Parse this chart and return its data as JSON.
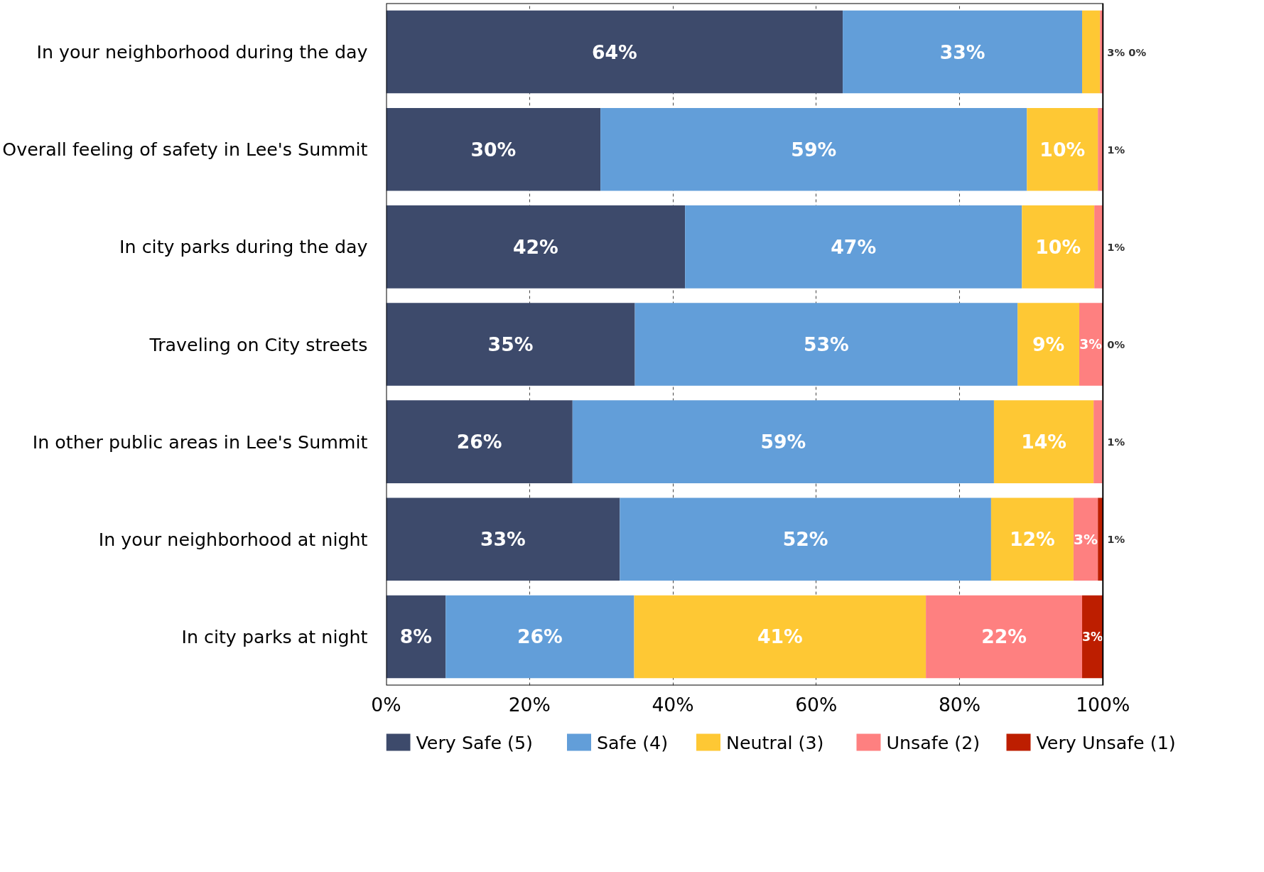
{
  "chart_data": {
    "type": "bar",
    "orientation": "horizontal",
    "stacked": true,
    "categories": [
      "In your neighborhood during the day",
      "Overall feeling of safety in Lee's Summit",
      "In city parks during the day",
      "Traveling on City streets",
      "In other public areas in Lee's Summit",
      "In your neighborhood at night",
      "In city parks at night"
    ],
    "series": [
      {
        "name": "Very Safe (5)",
        "color": "#3d4a6b",
        "values": [
          63.7,
          29.9,
          41.7,
          34.7,
          26.0,
          32.6,
          8.3
        ],
        "value_labels": [
          "64%",
          "30%",
          "42%",
          "35%",
          "26%",
          "33%",
          "8%"
        ]
      },
      {
        "name": "Safe (4)",
        "color": "#629ed9",
        "values": [
          33.4,
          59.5,
          47.0,
          53.4,
          58.8,
          51.8,
          26.3
        ],
        "value_labels": [
          "33%",
          "59%",
          "47%",
          "53%",
          "59%",
          "52%",
          "26%"
        ]
      },
      {
        "name": "Neutral (3)",
        "color": "#fec834",
        "values": [
          2.5,
          9.9,
          10.1,
          8.6,
          13.9,
          11.5,
          40.7
        ],
        "value_labels": [
          "3%",
          "10%",
          "10%",
          "9%",
          "14%",
          "12%",
          "41%"
        ]
      },
      {
        "name": "Unsafe (2)",
        "color": "#fe8080",
        "values": [
          0.4,
          0.7,
          1.2,
          3.2,
          1.2,
          3.4,
          21.8
        ],
        "value_labels": [
          "0%",
          "1%",
          "1%",
          "3%",
          "1%",
          "3%",
          "22%"
        ]
      },
      {
        "name": "Very Unsafe (1)",
        "color": "#bd1e00",
        "values": [
          0,
          0,
          0,
          0.1,
          0,
          0.7,
          2.9
        ],
        "value_labels": [
          null,
          null,
          null,
          "0%",
          null,
          "1%",
          "3%"
        ]
      }
    ],
    "xlim": [
      0,
      100
    ],
    "xticks": [
      {
        "value": 0,
        "label": "0%"
      },
      {
        "value": 20,
        "label": "20%"
      },
      {
        "value": 40,
        "label": "40%"
      },
      {
        "value": 60,
        "label": "60%"
      },
      {
        "value": 80,
        "label": "80%"
      },
      {
        "value": 100,
        "label": "100%"
      }
    ],
    "grid": "x",
    "legend": "bottom"
  }
}
